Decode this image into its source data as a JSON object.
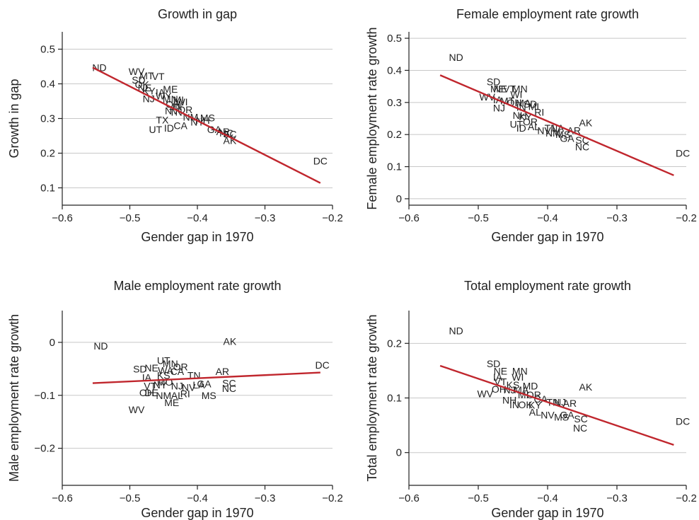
{
  "colors": {
    "fit_line": "#c0262d",
    "grid": "#c8c8c8",
    "frame": "#222222",
    "text": "#222222"
  },
  "chart_data": [
    {
      "type": "scatter",
      "title": "Growth in gap",
      "xlabel": "Gender gap in 1970",
      "ylabel": "Growth in gap",
      "xlim": [
        -0.6,
        -0.2
      ],
      "ylim": [
        0.05,
        0.55
      ],
      "xticks": [
        -0.6,
        -0.5,
        -0.4,
        -0.3,
        -0.2
      ],
      "xtick_labels": [
        "−0.6",
        "−0.5",
        "−0.4",
        "−0.3",
        "−0.2"
      ],
      "yticks": [
        0.1,
        0.2,
        0.3,
        0.4,
        0.5
      ],
      "ytick_labels": [
        "0.1",
        "0.2",
        "0.3",
        "0.4",
        "0.5"
      ],
      "grid": true,
      "fit_line": {
        "x": [
          -0.555,
          -0.218
        ],
        "y": [
          0.447,
          0.114
        ]
      },
      "points": [
        {
          "label": "ND",
          "x": -0.545,
          "y": 0.447
        },
        {
          "label": "WV",
          "x": -0.49,
          "y": 0.436
        },
        {
          "label": "SD",
          "x": -0.487,
          "y": 0.411
        },
        {
          "label": "MT",
          "x": -0.475,
          "y": 0.423
        },
        {
          "label": "VT",
          "x": -0.458,
          "y": 0.421
        },
        {
          "label": "OK",
          "x": -0.482,
          "y": 0.398
        },
        {
          "label": "NE",
          "x": -0.478,
          "y": 0.389
        },
        {
          "label": "KY",
          "x": -0.472,
          "y": 0.38
        },
        {
          "label": "ME",
          "x": -0.44,
          "y": 0.385
        },
        {
          "label": "IA",
          "x": -0.455,
          "y": 0.376
        },
        {
          "label": "NJ",
          "x": -0.472,
          "y": 0.357
        },
        {
          "label": "WY",
          "x": -0.45,
          "y": 0.365
        },
        {
          "label": "MN",
          "x": -0.44,
          "y": 0.356
        },
        {
          "label": "MI",
          "x": -0.428,
          "y": 0.354
        },
        {
          "label": "WI",
          "x": -0.423,
          "y": 0.348
        },
        {
          "label": "OH",
          "x": -0.436,
          "y": 0.341
        },
        {
          "label": "IN",
          "x": -0.43,
          "y": 0.335
        },
        {
          "label": "OR",
          "x": -0.418,
          "y": 0.326
        },
        {
          "label": "NV",
          "x": -0.438,
          "y": 0.322
        },
        {
          "label": "TN",
          "x": -0.432,
          "y": 0.318
        },
        {
          "label": "TX",
          "x": -0.452,
          "y": 0.296
        },
        {
          "label": "NM",
          "x": -0.41,
          "y": 0.304
        },
        {
          "label": "MS",
          "x": -0.385,
          "y": 0.302
        },
        {
          "label": "NH",
          "x": -0.392,
          "y": 0.295
        },
        {
          "label": "NY",
          "x": -0.4,
          "y": 0.29
        },
        {
          "label": "CA",
          "x": -0.425,
          "y": 0.28
        },
        {
          "label": "UT",
          "x": -0.462,
          "y": 0.268
        },
        {
          "label": "ID",
          "x": -0.442,
          "y": 0.272
        },
        {
          "label": "GA",
          "x": -0.375,
          "y": 0.268
        },
        {
          "label": "AR",
          "x": -0.362,
          "y": 0.262
        },
        {
          "label": "NC",
          "x": -0.357,
          "y": 0.258
        },
        {
          "label": "SC",
          "x": -0.352,
          "y": 0.255
        },
        {
          "label": "AK",
          "x": -0.352,
          "y": 0.237
        },
        {
          "label": "DC",
          "x": -0.218,
          "y": 0.178
        }
      ]
    },
    {
      "type": "scatter",
      "title": "Female employment rate growth",
      "xlabel": "Gender gap in 1970",
      "ylabel": "Female employment rate growth",
      "xlim": [
        -0.6,
        -0.2
      ],
      "ylim": [
        -0.02,
        0.52
      ],
      "xticks": [
        -0.6,
        -0.5,
        -0.4,
        -0.3,
        -0.2
      ],
      "xtick_labels": [
        "−0.6",
        "−0.5",
        "−0.4",
        "−0.3",
        "−0.2"
      ],
      "yticks": [
        0,
        0.1,
        0.2,
        0.3,
        0.4,
        0.5
      ],
      "ytick_labels": [
        "0",
        "0.1",
        "0.2",
        "0.3",
        "0.4",
        "0.5"
      ],
      "grid": true,
      "fit_line": {
        "x": [
          -0.555,
          -0.218
        ],
        "y": [
          0.385,
          0.073
        ]
      },
      "points": [
        {
          "label": "ND",
          "x": -0.532,
          "y": 0.441
        },
        {
          "label": "SD",
          "x": -0.478,
          "y": 0.365
        },
        {
          "label": "ME",
          "x": -0.472,
          "y": 0.343
        },
        {
          "label": "NE",
          "x": -0.468,
          "y": 0.343
        },
        {
          "label": "VT",
          "x": -0.455,
          "y": 0.343
        },
        {
          "label": "MN",
          "x": -0.44,
          "y": 0.343
        },
        {
          "label": "WI",
          "x": -0.445,
          "y": 0.325
        },
        {
          "label": "WV",
          "x": -0.487,
          "y": 0.317
        },
        {
          "label": "IA",
          "x": -0.472,
          "y": 0.308
        },
        {
          "label": "MT",
          "x": -0.458,
          "y": 0.305
        },
        {
          "label": "OH",
          "x": -0.448,
          "y": 0.3
        },
        {
          "label": "MA",
          "x": -0.435,
          "y": 0.298
        },
        {
          "label": "SD",
          "x": -0.425,
          "y": 0.295
        },
        {
          "label": "NJ",
          "x": -0.47,
          "y": 0.283
        },
        {
          "label": "IN",
          "x": -0.438,
          "y": 0.285
        },
        {
          "label": "MI",
          "x": -0.42,
          "y": 0.288
        },
        {
          "label": "RI",
          "x": -0.412,
          "y": 0.27
        },
        {
          "label": "NH",
          "x": -0.44,
          "y": 0.26
        },
        {
          "label": "KY",
          "x": -0.432,
          "y": 0.255
        },
        {
          "label": "UT",
          "x": -0.445,
          "y": 0.232
        },
        {
          "label": "OR",
          "x": -0.425,
          "y": 0.24
        },
        {
          "label": "ID",
          "x": -0.438,
          "y": 0.22
        },
        {
          "label": "AL",
          "x": -0.42,
          "y": 0.225
        },
        {
          "label": "TN",
          "x": -0.395,
          "y": 0.22
        },
        {
          "label": "NV",
          "x": -0.405,
          "y": 0.212
        },
        {
          "label": "LA",
          "x": -0.385,
          "y": 0.22
        },
        {
          "label": "NM",
          "x": -0.392,
          "y": 0.205
        },
        {
          "label": "MS",
          "x": -0.378,
          "y": 0.2
        },
        {
          "label": "AR",
          "x": -0.362,
          "y": 0.212
        },
        {
          "label": "GA",
          "x": -0.372,
          "y": 0.188
        },
        {
          "label": "AK",
          "x": -0.345,
          "y": 0.237
        },
        {
          "label": "SC",
          "x": -0.35,
          "y": 0.183
        },
        {
          "label": "NC",
          "x": -0.35,
          "y": 0.162
        },
        {
          "label": "DC",
          "x": -0.205,
          "y": 0.142
        }
      ]
    },
    {
      "type": "scatter",
      "title": "Male employment rate growth",
      "xlabel": "Gender gap in 1970",
      "ylabel": "Male employment rate growth",
      "xlim": [
        -0.6,
        -0.2
      ],
      "ylim": [
        -0.27,
        0.06
      ],
      "xticks": [
        -0.6,
        -0.5,
        -0.4,
        -0.3,
        -0.2
      ],
      "xtick_labels": [
        "−0.6",
        "−0.5",
        "−0.4",
        "−0.3",
        "−0.2"
      ],
      "yticks": [
        -0.2,
        -0.1,
        0
      ],
      "ytick_labels": [
        "−0.2",
        "−0.1",
        "0"
      ],
      "grid": true,
      "fit_line": {
        "x": [
          -0.555,
          -0.218
        ],
        "y": [
          -0.077,
          -0.057
        ]
      },
      "points": [
        {
          "label": "ND",
          "x": -0.543,
          "y": -0.007
        },
        {
          "label": "AK",
          "x": -0.352,
          "y": 0.002
        },
        {
          "label": "DC",
          "x": -0.215,
          "y": -0.043
        },
        {
          "label": "UT",
          "x": -0.45,
          "y": -0.034
        },
        {
          "label": "MN",
          "x": -0.44,
          "y": -0.04
        },
        {
          "label": "SD",
          "x": -0.485,
          "y": -0.05
        },
        {
          "label": "NE",
          "x": -0.468,
          "y": -0.048
        },
        {
          "label": "OR",
          "x": -0.425,
          "y": -0.046
        },
        {
          "label": "WA",
          "x": -0.447,
          "y": -0.053
        },
        {
          "label": "CA",
          "x": -0.43,
          "y": -0.055
        },
        {
          "label": "TN",
          "x": -0.405,
          "y": -0.062
        },
        {
          "label": "AR",
          "x": -0.363,
          "y": -0.055
        },
        {
          "label": "IA",
          "x": -0.475,
          "y": -0.066
        },
        {
          "label": "KS",
          "x": -0.45,
          "y": -0.062
        },
        {
          "label": "GA",
          "x": -0.39,
          "y": -0.078
        },
        {
          "label": "SC",
          "x": -0.353,
          "y": -0.077
        },
        {
          "label": "NC",
          "x": -0.353,
          "y": -0.087
        },
        {
          "label": "VT",
          "x": -0.47,
          "y": -0.082
        },
        {
          "label": "NY",
          "x": -0.455,
          "y": -0.08
        },
        {
          "label": "NJ",
          "x": -0.43,
          "y": -0.082
        },
        {
          "label": "LA",
          "x": -0.398,
          "y": -0.08
        },
        {
          "label": "MO",
          "x": -0.448,
          "y": -0.075
        },
        {
          "label": "NV",
          "x": -0.413,
          "y": -0.085
        },
        {
          "label": "OH",
          "x": -0.475,
          "y": -0.095
        },
        {
          "label": "DE",
          "x": -0.468,
          "y": -0.095
        },
        {
          "label": "NM",
          "x": -0.45,
          "y": -0.1
        },
        {
          "label": "AL",
          "x": -0.43,
          "y": -0.1
        },
        {
          "label": "RI",
          "x": -0.418,
          "y": -0.097
        },
        {
          "label": "MS",
          "x": -0.383,
          "y": -0.1
        },
        {
          "label": "ME",
          "x": -0.438,
          "y": -0.114
        },
        {
          "label": "WV",
          "x": -0.49,
          "y": -0.127
        }
      ]
    },
    {
      "type": "scatter",
      "title": "Total employment rate growth",
      "xlabel": "Gender gap in 1970",
      "ylabel": "Total employment rate growth",
      "xlim": [
        -0.6,
        -0.2
      ],
      "ylim": [
        -0.06,
        0.26
      ],
      "xticks": [
        -0.6,
        -0.5,
        -0.4,
        -0.3,
        -0.2
      ],
      "xtick_labels": [
        "−0.6",
        "−0.5",
        "−0.4",
        "−0.3",
        "−0.2"
      ],
      "yticks": [
        0,
        0.1,
        0.2
      ],
      "ytick_labels": [
        "0",
        "0.1",
        "0.2"
      ],
      "grid": true,
      "fit_line": {
        "x": [
          -0.555,
          -0.218
        ],
        "y": [
          0.159,
          0.014
        ]
      },
      "points": [
        {
          "label": "ND",
          "x": -0.532,
          "y": 0.223
        },
        {
          "label": "SD",
          "x": -0.478,
          "y": 0.163
        },
        {
          "label": "NE",
          "x": -0.468,
          "y": 0.149
        },
        {
          "label": "MN",
          "x": -0.44,
          "y": 0.149
        },
        {
          "label": "IA",
          "x": -0.472,
          "y": 0.138
        },
        {
          "label": "WI",
          "x": -0.443,
          "y": 0.138
        },
        {
          "label": "VT",
          "x": -0.468,
          "y": 0.13
        },
        {
          "label": "KS",
          "x": -0.45,
          "y": 0.124
        },
        {
          "label": "MD",
          "x": -0.425,
          "y": 0.122
        },
        {
          "label": "MA",
          "x": -0.438,
          "y": 0.115
        },
        {
          "label": "OH",
          "x": -0.47,
          "y": 0.116
        },
        {
          "label": "NJ",
          "x": -0.455,
          "y": 0.115
        },
        {
          "label": "WV",
          "x": -0.49,
          "y": 0.108
        },
        {
          "label": "MI",
          "x": -0.435,
          "y": 0.106
        },
        {
          "label": "OR",
          "x": -0.42,
          "y": 0.106
        },
        {
          "label": "CA",
          "x": -0.41,
          "y": 0.098
        },
        {
          "label": "NH",
          "x": -0.455,
          "y": 0.096
        },
        {
          "label": "TN",
          "x": -0.392,
          "y": 0.092
        },
        {
          "label": "NJ",
          "x": -0.382,
          "y": 0.092
        },
        {
          "label": "AR",
          "x": -0.368,
          "y": 0.09
        },
        {
          "label": "IN",
          "x": -0.448,
          "y": 0.088
        },
        {
          "label": "OK",
          "x": -0.432,
          "y": 0.088
        },
        {
          "label": "KY",
          "x": -0.418,
          "y": 0.087
        },
        {
          "label": "AK",
          "x": -0.345,
          "y": 0.12
        },
        {
          "label": "AL",
          "x": -0.418,
          "y": 0.074
        },
        {
          "label": "NV",
          "x": -0.4,
          "y": 0.069
        },
        {
          "label": "GA",
          "x": -0.372,
          "y": 0.069
        },
        {
          "label": "MS",
          "x": -0.38,
          "y": 0.065
        },
        {
          "label": "SC",
          "x": -0.352,
          "y": 0.062
        },
        {
          "label": "NC",
          "x": -0.353,
          "y": 0.045
        },
        {
          "label": "DC",
          "x": -0.205,
          "y": 0.057
        }
      ]
    }
  ]
}
